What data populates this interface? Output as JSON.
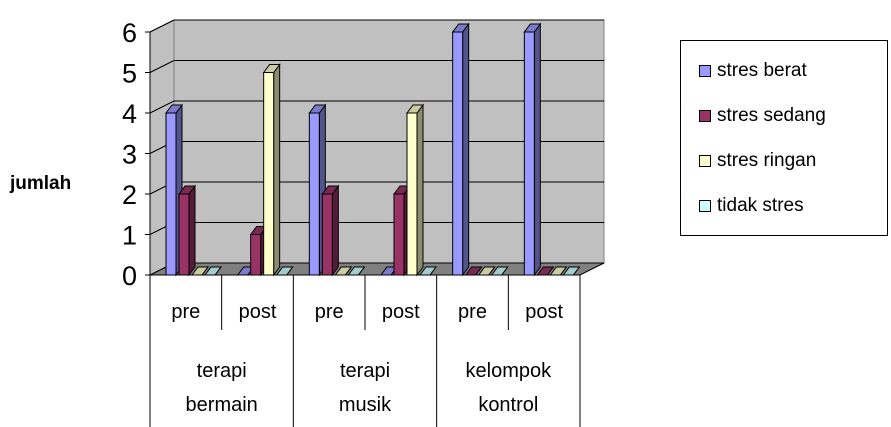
{
  "chart_data": {
    "type": "bar",
    "ylabel": "jumlah",
    "ylim": [
      0,
      6
    ],
    "yticks": [
      0,
      1,
      2,
      3,
      4,
      5,
      6
    ],
    "grid": true,
    "legend_position": "right",
    "groups": [
      {
        "label": [
          "terapi",
          "bermain"
        ],
        "categories": [
          "pre",
          "post"
        ]
      },
      {
        "label": [
          "terapi",
          "musik"
        ],
        "categories": [
          "pre",
          "post"
        ]
      },
      {
        "label": [
          "kelompok",
          "kontrol"
        ],
        "categories": [
          "pre",
          "post"
        ]
      }
    ],
    "categories": [
      "pre",
      "post",
      "pre",
      "post",
      "pre",
      "post"
    ],
    "series": [
      {
        "name": "stres berat",
        "color": "#9999FF",
        "values": [
          4,
          0,
          4,
          0,
          6,
          6
        ]
      },
      {
        "name": "stres sedang",
        "color": "#993366",
        "values": [
          2,
          1,
          2,
          2,
          0,
          0
        ]
      },
      {
        "name": "stres ringan",
        "color": "#FFFFCC",
        "values": [
          0,
          5,
          0,
          4,
          0,
          0
        ]
      },
      {
        "name": "tidak stres",
        "color": "#CCFFFF",
        "values": [
          0,
          0,
          0,
          0,
          0,
          0
        ]
      }
    ]
  }
}
